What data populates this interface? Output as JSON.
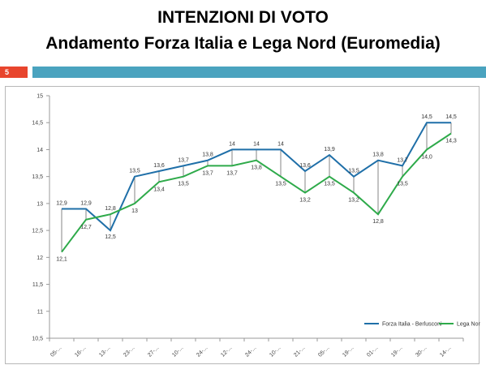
{
  "header": {
    "title_line1": "INTENZIONI DI VOTO",
    "title_line2": "Andamento Forza Italia e Lega Nord (Euromedia)",
    "slide_number": "5"
  },
  "colors": {
    "forza_italia": "#1f6fa8",
    "lega_nord": "#2eaa4a",
    "accent_bar": "#4aa3bf",
    "slide_number_bg": "#e8452d"
  },
  "chart_data": {
    "type": "line",
    "categories": [
      "05-...",
      "16-...",
      "13-...",
      "23-...",
      "27-...",
      "10-...",
      "24-...",
      "12-...",
      "24-...",
      "10-...",
      "21-...",
      "05-...",
      "19-...",
      "01-...",
      "19-...",
      "30-...",
      "14-..."
    ],
    "series": [
      {
        "name": "Forza Italia - Berlusconi",
        "values": [
          12.9,
          12.9,
          12.5,
          13.5,
          13.6,
          13.7,
          13.8,
          14,
          14,
          14,
          13.6,
          13.9,
          13.5,
          13.8,
          13.7,
          14.5,
          14.5
        ],
        "labels": [
          "12,9",
          "12,9",
          "12,5",
          "13,5",
          "13,6",
          "13,7",
          "13,8",
          "14",
          "14",
          "14",
          "13,6",
          "13,9",
          "13,5",
          "13,8",
          "13,7",
          "14,5",
          "14,5"
        ]
      },
      {
        "name": "Lega Nord",
        "values": [
          12.1,
          12.7,
          12.8,
          13,
          13.4,
          13.5,
          13.7,
          13.7,
          13.8,
          13.5,
          13.2,
          13.5,
          13.2,
          12.8,
          13.5,
          14,
          14.3
        ],
        "labels": [
          "12,1",
          "12,7",
          "12,8",
          "13",
          "13,4",
          "13,5",
          "13,7",
          "13,7",
          "13,8",
          "13,5",
          "13,2",
          "13,5",
          "13,2",
          "12,8",
          "13,5",
          "14,0",
          "14,3"
        ]
      }
    ],
    "y_ticks": [
      "10,5",
      "11",
      "11,5",
      "12",
      "12,5",
      "13",
      "13,5",
      "14",
      "14,5",
      "15"
    ],
    "ylim": [
      10.5,
      15
    ],
    "grid": false,
    "legend_position": "bottom-right"
  }
}
